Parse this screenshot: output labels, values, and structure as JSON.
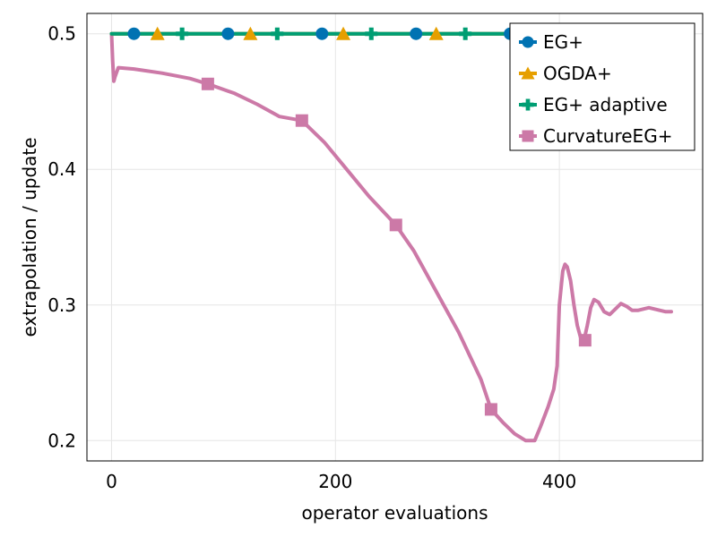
{
  "chart_data": {
    "type": "line",
    "xlabel": "operator evaluations",
    "ylabel": "extrapolation / update",
    "xlim": [
      -22,
      528
    ],
    "ylim": [
      0.185,
      0.515
    ],
    "xticks": [
      0,
      200,
      400
    ],
    "xtick_labels": [
      "0",
      "200",
      "400"
    ],
    "yticks": [
      0.2,
      0.3,
      0.4,
      0.5
    ],
    "ytick_labels": [
      "0.2",
      "0.3",
      "0.4",
      "0.5"
    ],
    "grid": true,
    "legend_position": "top-right",
    "series": [
      {
        "name": "EG+",
        "color": "#0072b2",
        "marker": "circle",
        "x": [
          0,
          500
        ],
        "y": [
          0.5,
          0.5
        ],
        "marker_x": [
          20,
          104,
          188,
          272,
          356
        ],
        "marker_y": [
          0.5,
          0.5,
          0.5,
          0.5,
          0.5
        ]
      },
      {
        "name": "OGDA+",
        "color": "#e69f00",
        "marker": "triangle",
        "x": [
          0,
          500
        ],
        "y": [
          0.5,
          0.5
        ],
        "marker_x": [
          41,
          124,
          207,
          290
        ],
        "marker_y": [
          0.5,
          0.5,
          0.5,
          0.5
        ]
      },
      {
        "name": "EG+ adaptive",
        "color": "#009e73",
        "marker": "plus",
        "x": [
          0,
          500
        ],
        "y": [
          0.5,
          0.5
        ],
        "marker_x": [
          63,
          148,
          232,
          316
        ],
        "marker_y": [
          0.5,
          0.5,
          0.5,
          0.5
        ]
      },
      {
        "name": "CurvatureEG+",
        "color": "#cc79a7",
        "marker": "square",
        "x": [
          0,
          1,
          2,
          3,
          6,
          20,
          45,
          70,
          86,
          110,
          130,
          150,
          170,
          190,
          210,
          230,
          254,
          270,
          290,
          310,
          330,
          339,
          350,
          360,
          370,
          378,
          383,
          390,
          395,
          398,
          400,
          403,
          405,
          407,
          410,
          413,
          416,
          419,
          422,
          425,
          428,
          431,
          435,
          440,
          445,
          450,
          455,
          460,
          465,
          470,
          475,
          480,
          485,
          490,
          495,
          500
        ],
        "y": [
          0.5,
          0.48,
          0.465,
          0.468,
          0.475,
          0.474,
          0.471,
          0.467,
          0.463,
          0.456,
          0.448,
          0.439,
          0.436,
          0.42,
          0.4,
          0.38,
          0.359,
          0.34,
          0.31,
          0.28,
          0.245,
          0.223,
          0.213,
          0.205,
          0.2,
          0.2,
          0.21,
          0.225,
          0.238,
          0.255,
          0.3,
          0.325,
          0.33,
          0.328,
          0.318,
          0.3,
          0.285,
          0.276,
          0.274,
          0.285,
          0.298,
          0.304,
          0.302,
          0.295,
          0.293,
          0.297,
          0.301,
          0.299,
          0.296,
          0.296,
          0.297,
          0.298,
          0.297,
          0.296,
          0.295,
          0.295
        ],
        "marker_x": [
          86,
          170,
          254,
          339,
          423
        ],
        "marker_y": [
          0.463,
          0.436,
          0.359,
          0.223,
          0.274
        ]
      }
    ]
  }
}
